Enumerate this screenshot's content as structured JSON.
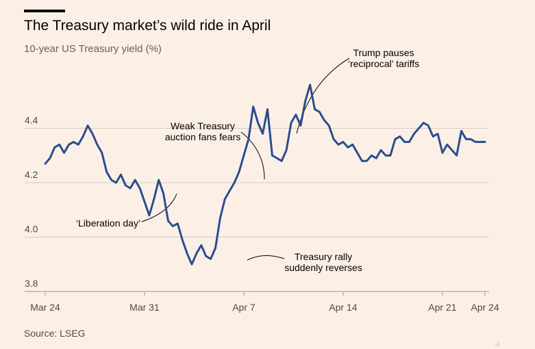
{
  "title": "The Treasury market’s wild ride in April",
  "subtitle": "10-year US Treasury yield (%)",
  "source": "Source: LSEG",
  "colors": {
    "background": "#fcf0e6",
    "line": "#2c4b8f",
    "grid": "#d6cbc2",
    "text": "#33302e"
  },
  "chart_data": {
    "type": "line",
    "ylim": [
      3.8,
      4.6
    ],
    "yticks": [
      3.8,
      4.0,
      4.2,
      4.4
    ],
    "ytick_labels": [
      "3.8",
      "4.0",
      "4.2",
      "4.4"
    ],
    "xlim": [
      "2025-03-24",
      "2025-04-24"
    ],
    "xticks": [
      "2025-03-24",
      "2025-03-31",
      "2025-04-07",
      "2025-04-14",
      "2025-04-21",
      "2025-04-24"
    ],
    "xtick_labels": [
      "Mar 24",
      "Mar 31",
      "Apr 7",
      "Apr 14",
      "Apr 21",
      "Apr 24"
    ],
    "grid": true,
    "series": [
      {
        "x": [
          "2025-03-24 00:00",
          "2025-03-24 08:00",
          "2025-03-24 16:00",
          "2025-03-25 00:00",
          "2025-03-25 08:00",
          "2025-03-25 16:00",
          "2025-03-26 00:00",
          "2025-03-26 08:00",
          "2025-03-26 16:00",
          "2025-03-27 00:00",
          "2025-03-27 08:00",
          "2025-03-27 16:00",
          "2025-03-28 00:00",
          "2025-03-28 08:00",
          "2025-03-28 16:00",
          "2025-03-29 00:00",
          "2025-03-29 08:00",
          "2025-03-29 16:00",
          "2025-03-30 00:00",
          "2025-03-30 08:00",
          "2025-03-30 16:00",
          "2025-03-31 00:00",
          "2025-03-31 08:00",
          "2025-03-31 16:00",
          "2025-04-01 00:00",
          "2025-04-01 08:00",
          "2025-04-01 16:00",
          "2025-04-02 00:00",
          "2025-04-02 08:00",
          "2025-04-02 16:00",
          "2025-04-03 00:00",
          "2025-04-03 08:00",
          "2025-04-03 16:00",
          "2025-04-04 00:00",
          "2025-04-04 08:00",
          "2025-04-04 16:00",
          "2025-04-05 00:00",
          "2025-04-05 08:00",
          "2025-04-05 16:00",
          "2025-04-06 00:00",
          "2025-04-06 08:00",
          "2025-04-06 16:00",
          "2025-04-07 00:00",
          "2025-04-07 08:00",
          "2025-04-07 16:00",
          "2025-04-08 00:00",
          "2025-04-08 08:00",
          "2025-04-08 16:00",
          "2025-04-09 00:00",
          "2025-04-09 08:00",
          "2025-04-09 16:00",
          "2025-04-10 00:00",
          "2025-04-10 08:00",
          "2025-04-10 16:00",
          "2025-04-11 00:00",
          "2025-04-11 08:00",
          "2025-04-11 16:00",
          "2025-04-12 00:00",
          "2025-04-12 08:00",
          "2025-04-12 16:00",
          "2025-04-13 00:00",
          "2025-04-13 08:00",
          "2025-04-13 16:00",
          "2025-04-14 00:00",
          "2025-04-14 08:00",
          "2025-04-14 16:00",
          "2025-04-15 00:00",
          "2025-04-15 08:00",
          "2025-04-15 16:00",
          "2025-04-16 00:00",
          "2025-04-16 08:00",
          "2025-04-16 16:00",
          "2025-04-17 00:00",
          "2025-04-17 08:00",
          "2025-04-17 16:00",
          "2025-04-18 00:00",
          "2025-04-18 08:00",
          "2025-04-18 16:00",
          "2025-04-19 00:00",
          "2025-04-19 08:00",
          "2025-04-19 16:00",
          "2025-04-20 00:00",
          "2025-04-20 08:00",
          "2025-04-20 16:00",
          "2025-04-21 00:00",
          "2025-04-21 08:00",
          "2025-04-21 16:00",
          "2025-04-22 00:00",
          "2025-04-22 08:00",
          "2025-04-22 16:00",
          "2025-04-23 00:00",
          "2025-04-23 08:00",
          "2025-04-23 16:00",
          "2025-04-24 00:00"
        ],
        "values": [
          4.27,
          4.29,
          4.33,
          4.34,
          4.31,
          4.34,
          4.35,
          4.34,
          4.37,
          4.41,
          4.38,
          4.34,
          4.31,
          4.24,
          4.21,
          4.2,
          4.23,
          4.19,
          4.18,
          4.21,
          4.18,
          4.13,
          4.08,
          4.14,
          4.21,
          4.16,
          4.06,
          4.04,
          4.05,
          3.99,
          3.94,
          3.9,
          3.94,
          3.97,
          3.93,
          3.92,
          3.96,
          4.07,
          4.14,
          4.17,
          4.2,
          4.24,
          4.3,
          4.36,
          4.48,
          4.42,
          4.38,
          4.47,
          4.3,
          4.29,
          4.28,
          4.32,
          4.42,
          4.45,
          4.41,
          4.5,
          4.56,
          4.47,
          4.46,
          4.43,
          4.41,
          4.36,
          4.34,
          4.35,
          4.33,
          4.34,
          4.31,
          4.28,
          4.28,
          4.3,
          4.29,
          4.32,
          4.3,
          4.3,
          4.36,
          4.37,
          4.35,
          4.35,
          4.38,
          4.4,
          4.42,
          4.41,
          4.37,
          4.38,
          4.31,
          4.34,
          4.32,
          4.3,
          4.39,
          4.36,
          4.36,
          4.35,
          4.35,
          4.35
        ]
      }
    ],
    "annotations": [
      {
        "lines": [
          "‘Liberation day’"
        ]
      },
      {
        "lines": [
          "Weak Treasury",
          "auction fans fears"
        ]
      },
      {
        "lines": [
          "Trump pauses",
          "‘reciprocal’ tariffs"
        ]
      },
      {
        "lines": [
          "Treasury rally",
          "suddenly reverses"
        ]
      }
    ]
  }
}
